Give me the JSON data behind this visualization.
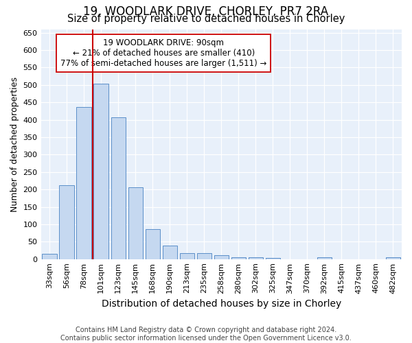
{
  "title": "19, WOODLARK DRIVE, CHORLEY, PR7 2RA",
  "subtitle": "Size of property relative to detached houses in Chorley",
  "xlabel": "Distribution of detached houses by size in Chorley",
  "ylabel": "Number of detached properties",
  "categories": [
    "33sqm",
    "56sqm",
    "78sqm",
    "101sqm",
    "123sqm",
    "145sqm",
    "168sqm",
    "190sqm",
    "213sqm",
    "235sqm",
    "258sqm",
    "280sqm",
    "302sqm",
    "325sqm",
    "347sqm",
    "370sqm",
    "392sqm",
    "415sqm",
    "437sqm",
    "460sqm",
    "482sqm"
  ],
  "values": [
    15,
    212,
    437,
    503,
    407,
    207,
    86,
    38,
    17,
    17,
    11,
    5,
    5,
    3,
    0,
    0,
    6,
    0,
    0,
    0,
    6
  ],
  "bar_color": "#c5d8f0",
  "bar_edge_color": "#5b8fc9",
  "bg_color": "#e8f0fa",
  "grid_color": "#ffffff",
  "vline_color": "#cc0000",
  "vline_x_index": 2.5,
  "annotation_text": "19 WOODLARK DRIVE: 90sqm\n← 21% of detached houses are smaller (410)\n77% of semi-detached houses are larger (1,511) →",
  "annotation_box_color": "#ffffff",
  "annotation_box_edge": "#cc0000",
  "ylim": [
    0,
    660
  ],
  "yticks": [
    0,
    50,
    100,
    150,
    200,
    250,
    300,
    350,
    400,
    450,
    500,
    550,
    600,
    650
  ],
  "footnote": "Contains HM Land Registry data © Crown copyright and database right 2024.\nContains public sector information licensed under the Open Government Licence v3.0.",
  "title_fontsize": 12,
  "subtitle_fontsize": 10.5,
  "annotation_fontsize": 8.5,
  "footnote_fontsize": 7,
  "ylabel_fontsize": 9,
  "xlabel_fontsize": 10,
  "tick_fontsize": 8
}
